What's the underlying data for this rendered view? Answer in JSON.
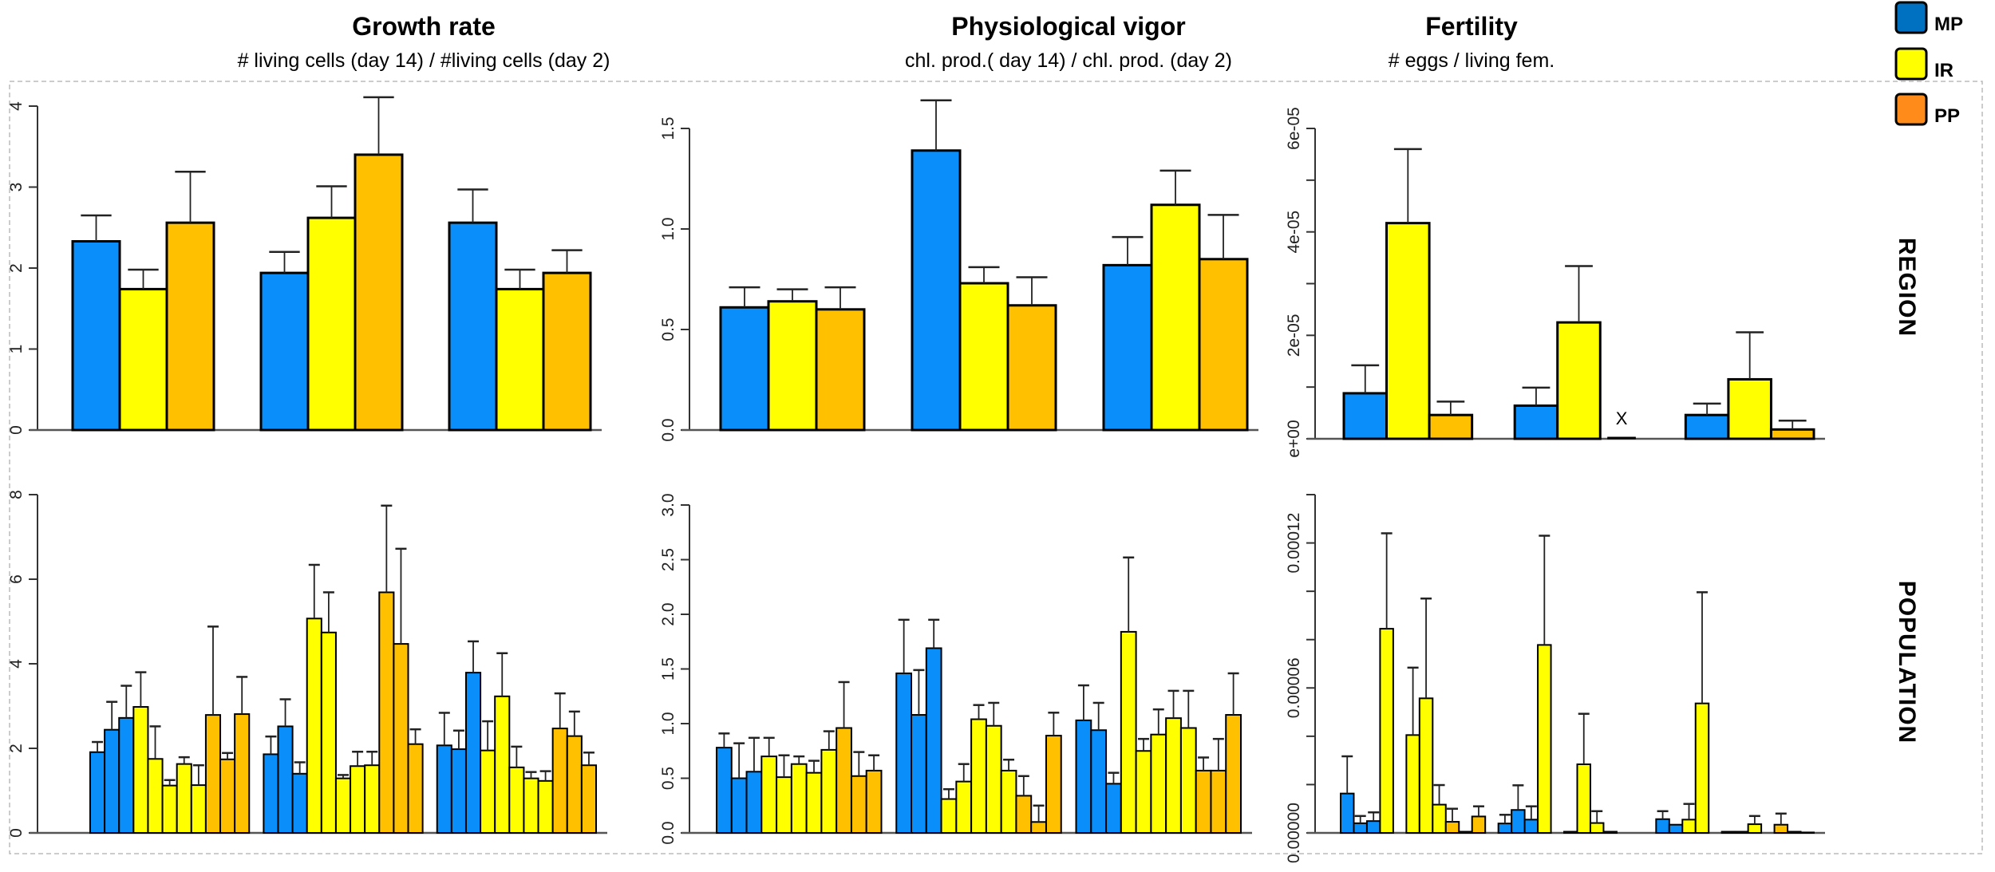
{
  "legend": {
    "items": [
      {
        "label": "MP",
        "color": "#0070C0"
      },
      {
        "label": "IR",
        "color": "#FFFF00"
      },
      {
        "label": "PP",
        "color": "#FF8C1A"
      }
    ]
  },
  "row_labels": {
    "region": "REGION",
    "population": "POPULATION"
  },
  "series_colors": {
    "MP": "#0A8FFA",
    "IR": "#FFFF00",
    "PP": "#FFC000"
  },
  "chart_data": [
    {
      "type": "bar",
      "title": "Growth rate",
      "subtitle": "# living cells (day 14) / #living cells (day 2)",
      "row": "REGION",
      "ylim": [
        0,
        4
      ],
      "yticks": [
        0,
        1,
        2,
        3,
        4
      ],
      "ytick_labels": [
        "0",
        "1",
        "2",
        "3",
        "4"
      ],
      "groups": 3,
      "series_per_bar": [
        "MP",
        "IR",
        "PP",
        "MP",
        "IR",
        "PP",
        "MP",
        "IR",
        "PP"
      ],
      "values": [
        2.33,
        1.74,
        2.56,
        1.94,
        2.62,
        3.4,
        2.56,
        1.74,
        1.94
      ],
      "upper": [
        2.65,
        1.98,
        3.19,
        2.2,
        3.01,
        4.11,
        2.97,
        1.98,
        2.22
      ]
    },
    {
      "type": "bar",
      "title": "Physiological vigor",
      "subtitle": "chl. prod.( day 14) / chl. prod. (day 2)",
      "row": "REGION",
      "ylim": [
        0,
        1.5
      ],
      "yticks": [
        0,
        0.5,
        1.0,
        1.5
      ],
      "ytick_labels": [
        "0.0",
        "0.5",
        "1.0",
        "1.5"
      ],
      "groups": 3,
      "series_per_bar": [
        "MP",
        "IR",
        "PP",
        "MP",
        "IR",
        "PP",
        "MP",
        "IR",
        "PP"
      ],
      "values": [
        0.61,
        0.64,
        0.6,
        1.39,
        0.73,
        0.62,
        0.82,
        1.12,
        0.85
      ],
      "upper": [
        0.71,
        0.7,
        0.71,
        1.64,
        0.81,
        0.76,
        0.96,
        1.29,
        1.07
      ]
    },
    {
      "type": "bar",
      "title": "Fertility",
      "subtitle": "# eggs / living fem.",
      "row": "REGION",
      "ylim": [
        0,
        6e-05
      ],
      "yticks": [
        0,
        1e-05,
        2e-05,
        3e-05,
        4e-05,
        5e-05,
        6e-05
      ],
      "ytick_labels": [
        "e+00",
        "",
        "2e-05",
        "",
        "4e-05",
        "",
        "6e-05"
      ],
      "groups": 3,
      "series_per_bar": [
        "MP",
        "IR",
        "PP",
        "MP",
        "IR",
        "PP",
        "MP",
        "IR",
        "PP"
      ],
      "values": [
        8.8e-06,
        4.17e-05,
        4.6e-06,
        6.4e-06,
        2.25e-05,
        0,
        4.6e-06,
        1.15e-05,
        1.8e-06
      ],
      "upper": [
        1.42e-05,
        5.6e-05,
        7.2e-06,
        9.9e-06,
        3.34e-05,
        null,
        6.8e-06,
        2.06e-05,
        3.5e-06
      ],
      "missing_marker": {
        "bar_index": 5,
        "label": "X"
      }
    },
    {
      "type": "bar",
      "row": "POPULATION",
      "ylim": [
        0,
        8
      ],
      "yticks": [
        0,
        2,
        4,
        6,
        8
      ],
      "ytick_labels": [
        "0",
        "2",
        "4",
        "6",
        "8"
      ],
      "groups": 3,
      "series_per_bar": [
        "MP",
        "MP",
        "MP",
        "IR",
        "IR",
        "IR",
        "IR",
        "IR",
        "PP",
        "PP",
        "PP",
        "MP",
        "MP",
        "MP",
        "IR",
        "IR",
        "IR",
        "IR",
        "IR",
        "PP",
        "PP",
        "PP",
        "MP",
        "MP",
        "MP",
        "IR",
        "IR",
        "IR",
        "IR",
        "IR",
        "PP",
        "PP",
        "PP"
      ],
      "values": [
        1.91,
        2.44,
        2.72,
        2.98,
        1.75,
        1.12,
        1.63,
        1.13,
        2.79,
        1.74,
        2.81,
        1.86,
        2.52,
        1.4,
        5.07,
        4.74,
        1.29,
        1.58,
        1.6,
        5.69,
        4.47,
        2.1,
        2.07,
        1.98,
        3.79,
        1.95,
        3.23,
        1.55,
        1.29,
        1.23,
        2.47,
        2.29,
        1.6
      ],
      "upper": [
        2.15,
        3.1,
        3.48,
        3.8,
        2.52,
        1.25,
        1.79,
        1.6,
        4.88,
        1.89,
        3.69,
        2.28,
        3.16,
        1.67,
        6.34,
        5.69,
        1.37,
        1.92,
        1.92,
        7.74,
        6.72,
        2.45,
        2.84,
        2.42,
        4.53,
        2.64,
        4.25,
        2.04,
        1.44,
        1.46,
        3.3,
        2.87,
        1.9
      ]
    },
    {
      "type": "bar",
      "row": "POPULATION",
      "ylim": [
        0,
        3.0
      ],
      "yticks": [
        0,
        0.5,
        1.0,
        1.5,
        2.0,
        2.5,
        3.0
      ],
      "ytick_labels": [
        "0.0",
        "0.5",
        "1.0",
        "1.5",
        "2.0",
        "2.5",
        "3.0"
      ],
      "groups": 3,
      "series_per_bar": [
        "MP",
        "MP",
        "MP",
        "IR",
        "IR",
        "IR",
        "IR",
        "IR",
        "PP",
        "PP",
        "PP",
        "MP",
        "MP",
        "MP",
        "IR",
        "IR",
        "IR",
        "IR",
        "IR",
        "PP",
        "PP",
        "PP",
        "MP",
        "MP",
        "MP",
        "IR",
        "IR",
        "IR",
        "IR",
        "IR",
        "PP",
        "PP",
        "PP"
      ],
      "values": [
        0.78,
        0.5,
        0.56,
        0.7,
        0.51,
        0.63,
        0.55,
        0.76,
        0.96,
        0.52,
        0.57,
        1.46,
        1.08,
        1.69,
        0.31,
        0.47,
        1.04,
        0.98,
        0.57,
        0.34,
        0.1,
        0.89,
        1.03,
        0.94,
        0.45,
        1.84,
        0.75,
        0.9,
        1.05,
        0.96,
        0.57,
        0.57,
        1.08
      ],
      "upper": [
        0.91,
        0.82,
        0.87,
        0.87,
        0.71,
        0.7,
        0.66,
        0.93,
        1.38,
        0.74,
        0.71,
        1.95,
        1.49,
        1.95,
        0.4,
        0.63,
        1.17,
        1.19,
        0.67,
        0.52,
        0.25,
        1.1,
        1.35,
        1.19,
        0.55,
        2.52,
        0.86,
        1.13,
        1.3,
        1.3,
        0.69,
        0.86,
        1.46
      ]
    },
    {
      "type": "bar",
      "row": "POPULATION",
      "ylim": [
        0,
        0.00014
      ],
      "yticks": [
        0,
        2e-05,
        4e-05,
        6e-05,
        8e-05,
        0.0001,
        0.00012,
        0.00014
      ],
      "ytick_labels": [
        "0.00000",
        "",
        "",
        "0.00006",
        "",
        "",
        "0.00012",
        ""
      ],
      "groups": 1,
      "series_per_bar": [
        "MP",
        "MP",
        "MP",
        "IR",
        "IR",
        "IR",
        "IR",
        "IR",
        "PP",
        "PP",
        "PP",
        "PP",
        "MP",
        "MP",
        "MP",
        "IR",
        "IR",
        "MP",
        "IR",
        "IR",
        "IR",
        "IR",
        "IR",
        "IR",
        "MP",
        "MP",
        "IR",
        "IR",
        "IR",
        "MP",
        "MP",
        "IR",
        "IR",
        "PP",
        "PP",
        "PP"
      ],
      "values": [
        1.63e-05,
        4e-06,
        4.9e-06,
        8.45e-05,
        0,
        4.05e-05,
        5.57e-05,
        1.17e-05,
        4.6e-06,
        5e-07,
        6.8e-06,
        0,
        3.9e-06,
        9.5e-06,
        5.5e-06,
        7.78e-05,
        0,
        5e-07,
        2.84e-05,
        4.1e-06,
        5e-07,
        0,
        0,
        0,
        5.7e-06,
        3.4e-06,
        5.5e-06,
        5.36e-05,
        0,
        5e-07,
        5e-07,
        3.6e-06,
        0,
        3.4e-06,
        5e-07,
        2e-07
      ],
      "upper": [
        3.17e-05,
        7e-06,
        8.5e-06,
        0.000124,
        null,
        6.84e-05,
        9.7e-05,
        1.98e-05,
        1e-05,
        null,
        1.1e-05,
        null,
        7.5e-06,
        1.97e-05,
        1.1e-05,
        0.000123,
        null,
        null,
        4.93e-05,
        9e-06,
        null,
        null,
        null,
        null,
        9e-06,
        null,
        1.2e-05,
        9.96e-05,
        null,
        null,
        null,
        7e-06,
        null,
        8e-06,
        null,
        null
      ]
    }
  ]
}
